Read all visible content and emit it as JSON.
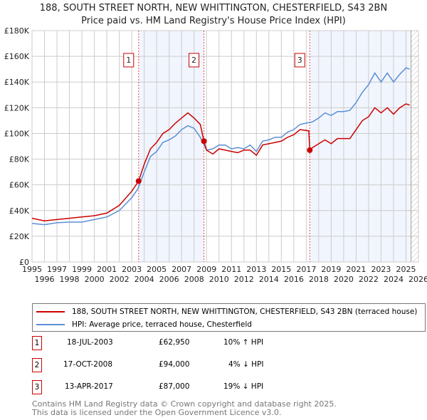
{
  "chart_data": {
    "type": "line",
    "title": "188, SOUTH STREET NORTH, NEW WHITTINGTON, CHESTERFIELD, S43 2BN",
    "subtitle": "Price paid vs. HM Land Registry's House Price Index (HPI)",
    "xlim": [
      1995,
      2026
    ],
    "ylim": [
      0,
      180000
    ],
    "x_ticks": [
      "1995",
      "1996",
      "1997",
      "1998",
      "1999",
      "2000",
      "2001",
      "2002",
      "2003",
      "2004",
      "2005",
      "2006",
      "2007",
      "2008",
      "2009",
      "2010",
      "2011",
      "2012",
      "2013",
      "2014",
      "2015",
      "2016",
      "2017",
      "2018",
      "2019",
      "2020",
      "2021",
      "2022",
      "2023",
      "2024",
      "2025",
      "2026"
    ],
    "y_ticks": [
      "£0",
      "£20K",
      "£40K",
      "£60K",
      "£80K",
      "£100K",
      "£120K",
      "£140K",
      "£160K",
      "£180K"
    ],
    "grid": true,
    "series": [
      {
        "name": "188, SOUTH STREET NORTH, NEW WHITTINGTON, CHESTERFIELD, S43 2BN (terraced house)",
        "color": "#cc0000",
        "x": [
          1995,
          1996,
          1997,
          1998,
          1999,
          2000,
          2001,
          2002,
          2003,
          2003.55,
          2004,
          2004.5,
          2005,
          2005.5,
          2006,
          2006.5,
          2007,
          2007.5,
          2008,
          2008.5,
          2008.79,
          2009,
          2009.5,
          2010,
          2010.5,
          2011,
          2011.5,
          2012,
          2012.5,
          2013,
          2013.5,
          2014,
          2014.5,
          2015,
          2015.5,
          2016,
          2016.5,
          2017.2,
          2017.28,
          2017.5,
          2018,
          2018.5,
          2019,
          2019.5,
          2020,
          2020.5,
          2021,
          2021.5,
          2022,
          2022.5,
          2023,
          2023.5,
          2024,
          2024.5,
          2025,
          2025.3
        ],
        "y": [
          34000,
          32000,
          33000,
          34000,
          35000,
          36000,
          38000,
          44000,
          55000,
          62950,
          76000,
          88000,
          93000,
          100000,
          103000,
          108000,
          112000,
          116000,
          112000,
          107000,
          94000,
          87000,
          84000,
          88000,
          87000,
          86000,
          85000,
          87000,
          87000,
          83000,
          91000,
          92000,
          93000,
          94000,
          97000,
          99000,
          103000,
          102000,
          87000,
          89000,
          92000,
          95000,
          92000,
          96000,
          96000,
          96000,
          103000,
          110000,
          113000,
          120000,
          116000,
          120000,
          115000,
          120000,
          123000,
          122000
        ]
      },
      {
        "name": "HPI: Average price, terraced house, Chesterfield",
        "color": "#5b8fd4",
        "x": [
          1995,
          1996,
          1997,
          1998,
          1999,
          2000,
          2001,
          2002,
          2003,
          2003.5,
          2004,
          2004.5,
          2005,
          2005.5,
          2006,
          2006.5,
          2007,
          2007.5,
          2008,
          2008.5,
          2009,
          2009.5,
          2010,
          2010.5,
          2011,
          2011.5,
          2012,
          2012.5,
          2013,
          2013.5,
          2014,
          2014.5,
          2015,
          2015.5,
          2016,
          2016.5,
          2017,
          2017.5,
          2018,
          2018.5,
          2019,
          2019.5,
          2020,
          2020.5,
          2021,
          2021.5,
          2022,
          2022.5,
          2023,
          2023.5,
          2024,
          2024.5,
          2025,
          2025.3
        ],
        "y": [
          30000,
          29000,
          30500,
          31000,
          31000,
          33000,
          35000,
          40000,
          50000,
          57000,
          70000,
          82000,
          86000,
          93000,
          95000,
          98000,
          103000,
          106000,
          104000,
          97000,
          87000,
          88000,
          91000,
          91000,
          88000,
          89000,
          88000,
          91000,
          86000,
          94000,
          95000,
          97000,
          97000,
          101000,
          103000,
          107000,
          108000,
          109000,
          112000,
          116000,
          114000,
          117000,
          117000,
          118000,
          124000,
          132000,
          138000,
          147000,
          140000,
          147000,
          140000,
          146000,
          151000,
          150000
        ]
      }
    ],
    "sales": [
      {
        "label": "1",
        "x": 2003.55,
        "y": 62950,
        "date": "18-JUL-2003",
        "price": "£62,950",
        "hpi": "10% ↑ HPI"
      },
      {
        "label": "2",
        "x": 2008.79,
        "y": 94000,
        "date": "17-OCT-2008",
        "price": "£94,000",
        "hpi": "4% ↓ HPI"
      },
      {
        "label": "3",
        "x": 2017.28,
        "y": 87000,
        "date": "13-APR-2017",
        "price": "£87,000",
        "hpi": "19% ↓ HPI"
      }
    ],
    "shaded": [
      [
        2003.55,
        2008.79
      ],
      [
        2017.28,
        2025.3
      ]
    ],
    "forecast_start": 2025.4,
    "legend": "below"
  },
  "footer": [
    "Contains HM Land Registry data © Crown copyright and database right 2025.",
    "This data is licensed under the Open Government Licence v3.0."
  ]
}
